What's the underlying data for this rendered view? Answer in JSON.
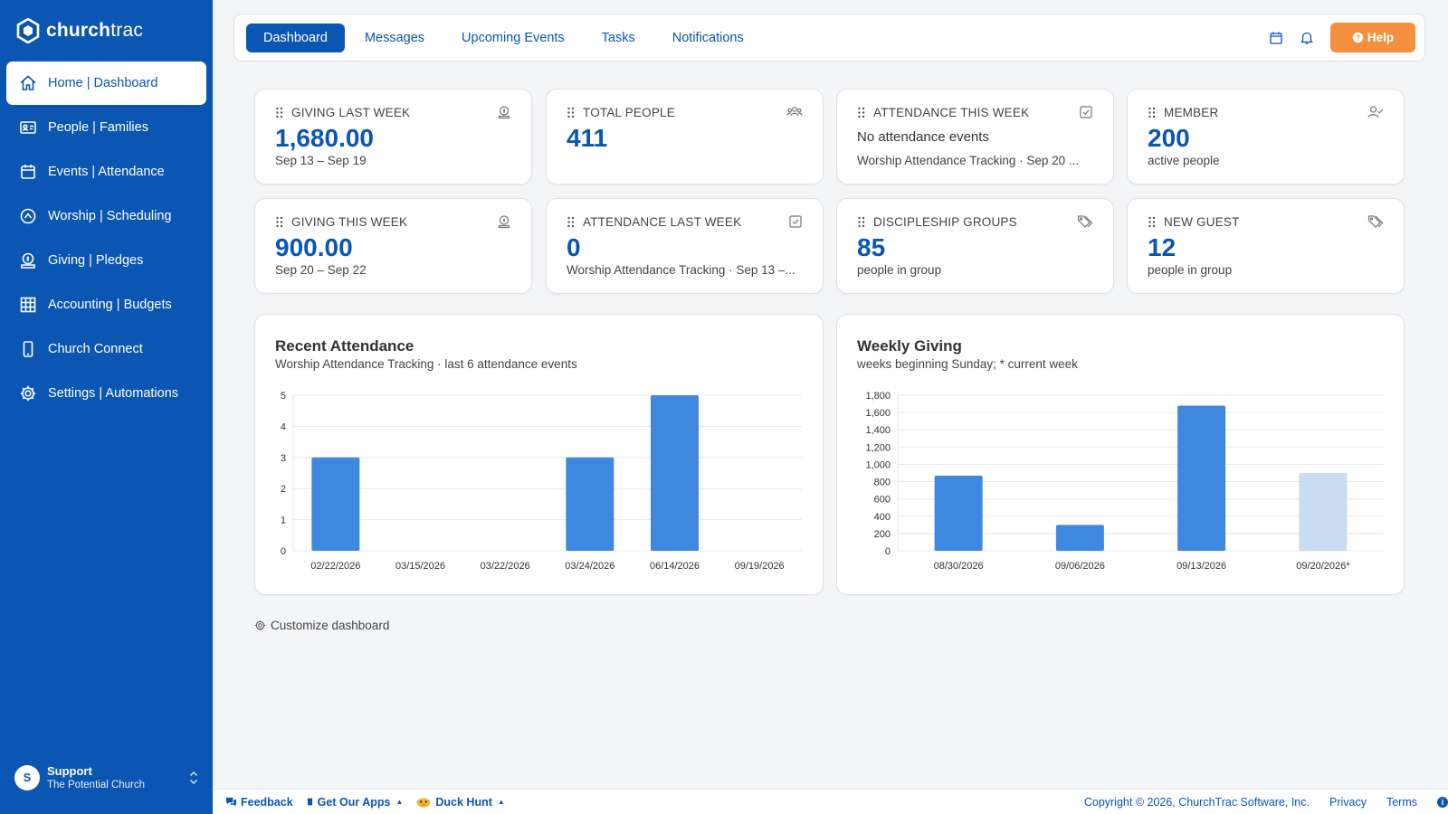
{
  "app": {
    "logo_bold": "church",
    "logo_light": "trac"
  },
  "sidebar": {
    "items": [
      {
        "label": "Home | Dashboard",
        "icon": "home-icon",
        "active": true
      },
      {
        "label": "People | Families",
        "icon": "id-card-icon"
      },
      {
        "label": "Events | Attendance",
        "icon": "calendar-icon"
      },
      {
        "label": "Worship | Scheduling",
        "icon": "worship-icon"
      },
      {
        "label": "Giving | Pledges",
        "icon": "giving-icon"
      },
      {
        "label": "Accounting | Budgets",
        "icon": "grid-icon"
      },
      {
        "label": "Church Connect",
        "icon": "phone-icon"
      },
      {
        "label": "Settings | Automations",
        "icon": "gear-icon"
      }
    ],
    "user": {
      "initial": "S",
      "name": "Support",
      "org": "The Potential Church"
    }
  },
  "topbar": {
    "tabs": [
      "Dashboard",
      "Messages",
      "Upcoming Events",
      "Tasks",
      "Notifications"
    ],
    "help_label": "Help"
  },
  "cards": {
    "giving_last_week": {
      "label": "GIVING LAST WEEK",
      "value": "1,680.00",
      "sub": "Sep 13 – Sep 19"
    },
    "total_people": {
      "label": "TOTAL PEOPLE",
      "value": "411"
    },
    "attendance_this_week": {
      "label": "ATTENDANCE THIS WEEK",
      "line1": "No attendance events",
      "sub": "Worship Attendance Tracking · Sep 20 ..."
    },
    "member": {
      "label": "MEMBER",
      "value": "200",
      "sub": "active people"
    },
    "giving_this_week": {
      "label": "GIVING THIS WEEK",
      "value": "900.00",
      "sub": "Sep 20 – Sep 22"
    },
    "attendance_last_week": {
      "label": "ATTENDANCE LAST WEEK",
      "value": "0",
      "sub": "Worship Attendance Tracking · Sep 13 –..."
    },
    "discipleship_groups": {
      "label": "DISCIPLESHIP GROUPS",
      "value": "85",
      "sub": "people in group"
    },
    "new_guest": {
      "label": "NEW GUEST",
      "value": "12",
      "sub": "people in group"
    }
  },
  "chart_data": [
    {
      "type": "bar",
      "title": "Recent Attendance",
      "subtitle": "Worship Attendance Tracking · last 6 attendance events",
      "categories": [
        "02/22/2026",
        "03/15/2026",
        "03/22/2026",
        "03/24/2026",
        "06/14/2026",
        "09/19/2026"
      ],
      "values": [
        3,
        0,
        0,
        3,
        5,
        0
      ],
      "ylim": [
        0,
        5
      ],
      "yticks": [
        "0",
        "1",
        "2",
        "3",
        "4",
        "5"
      ],
      "grid": true,
      "color": "#3f87df"
    },
    {
      "type": "bar",
      "title": "Weekly Giving",
      "subtitle": "weeks beginning Sunday; * current week",
      "categories": [
        "08/30/2026",
        "09/06/2026",
        "09/13/2026",
        "09/20/2026*"
      ],
      "values": [
        870,
        300,
        1680,
        900
      ],
      "ylim": [
        0,
        1800
      ],
      "yticks": [
        "0",
        "200",
        "400",
        "600",
        "800",
        "1,000",
        "1,200",
        "1,400",
        "1,600",
        "1,800"
      ],
      "grid": true,
      "color": "#3f87df",
      "current_week_color": "#c9dcf1"
    }
  ],
  "customize_label": "Customize dashboard",
  "footer": {
    "feedback": "Feedback",
    "apps": "Get Our Apps",
    "duck": "Duck Hunt",
    "copyright": "Copyright © 2026, ChurchTrac Software, Inc.",
    "privacy": "Privacy",
    "terms": "Terms"
  }
}
